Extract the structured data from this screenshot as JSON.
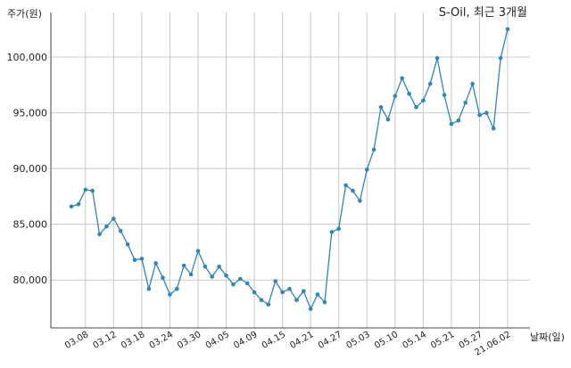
{
  "chart_data": {
    "type": "line",
    "title": "S-Oil, 최근 3개월",
    "ylabel": "주가(원)",
    "xlabel": "날짜(일)",
    "ylim": [
      75700,
      104000
    ],
    "yticks": [
      80000,
      85000,
      90000,
      95000,
      100000
    ],
    "ytick_labels": [
      "80,000",
      "85,000",
      "90,000",
      "95,000",
      "100,000"
    ],
    "xtick_labels": [
      "03.08",
      "03.12",
      "03.18",
      "03.24",
      "03.30",
      "04.05",
      "04.09",
      "04.15",
      "04.21",
      "04.27",
      "05.03",
      "05.10",
      "05.14",
      "05.21",
      "05.27",
      "21.06.02"
    ],
    "xtick_index": [
      2,
      6,
      10,
      14,
      18,
      22,
      26,
      30,
      34,
      38,
      42,
      46,
      50,
      54,
      58,
      62
    ],
    "grid": true,
    "line_color": "#2f86b8",
    "series": [
      {
        "values": [
          86600,
          86800,
          88100,
          88000,
          84100,
          84800,
          85500,
          84400,
          83200,
          81800,
          81900,
          79200,
          81500,
          80200,
          78700,
          79200,
          81300,
          80500,
          82600,
          81200,
          80300,
          81200,
          80400,
          79600,
          80100,
          79700,
          78900,
          78200,
          77800,
          79900,
          78900,
          79200,
          78200,
          79000,
          77400,
          78700,
          78000,
          84300,
          84600,
          88500,
          88000,
          87100,
          89900,
          91700,
          95500,
          94400,
          96500,
          98100,
          96700,
          95500,
          96100,
          97600,
          99900,
          96600,
          94000,
          94300,
          95900,
          97600,
          94800,
          95000,
          93600,
          99900,
          102500
        ]
      }
    ]
  }
}
